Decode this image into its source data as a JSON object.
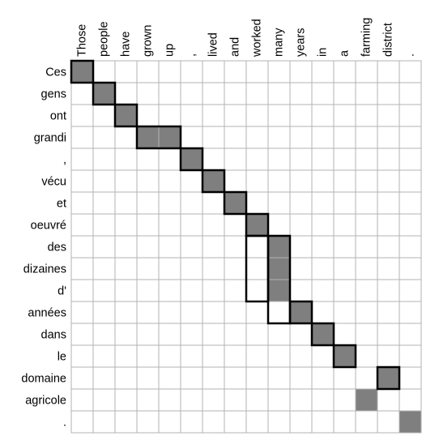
{
  "alignment": {
    "source_words": [
      "Those",
      "people",
      "have",
      "grown",
      "up",
      ",",
      "lived",
      "and",
      "worked",
      "many",
      "years",
      "in",
      "a",
      "farming",
      "district",
      "."
    ],
    "target_words": [
      "Ces",
      "gens",
      "ont",
      "grandi",
      ",",
      "vécu",
      "et",
      "oeuvré",
      "des",
      "dizaines",
      "d'",
      "années",
      "dans",
      "le",
      "domaine",
      "agricole",
      "."
    ],
    "alignments": [
      [
        0,
        0
      ],
      [
        1,
        1
      ],
      [
        2,
        2
      ],
      [
        3,
        3
      ],
      [
        3,
        4
      ],
      [
        4,
        5
      ],
      [
        5,
        6
      ],
      [
        6,
        7
      ],
      [
        7,
        8
      ],
      [
        8,
        9
      ],
      [
        9,
        9
      ],
      [
        10,
        9
      ],
      [
        11,
        10
      ],
      [
        12,
        11
      ],
      [
        13,
        12
      ],
      [
        14,
        14
      ],
      [
        15,
        13
      ],
      [
        16,
        15
      ]
    ],
    "boxes": [
      {
        "rows": [
          0,
          1
        ],
        "cols": [
          0,
          1
        ]
      },
      {
        "rows": [
          1,
          2
        ],
        "cols": [
          1,
          2
        ]
      },
      {
        "rows": [
          2,
          3
        ],
        "cols": [
          2,
          3
        ]
      },
      {
        "rows": [
          3,
          4
        ],
        "cols": [
          3,
          5
        ]
      },
      {
        "rows": [
          4,
          5
        ],
        "cols": [
          5,
          6
        ]
      },
      {
        "rows": [
          5,
          6
        ],
        "cols": [
          6,
          7
        ]
      },
      {
        "rows": [
          6,
          7
        ],
        "cols": [
          7,
          8
        ]
      },
      {
        "rows": [
          7,
          8
        ],
        "cols": [
          8,
          9
        ]
      },
      {
        "rows": [
          8,
          11
        ],
        "cols": [
          8,
          9
        ]
      },
      {
        "rows": [
          8,
          12
        ],
        "cols": [
          9,
          10
        ]
      },
      {
        "rows": [
          11,
          12
        ],
        "cols": [
          10,
          11
        ]
      },
      {
        "rows": [
          12,
          13
        ],
        "cols": [
          11,
          12
        ]
      },
      {
        "rows": [
          13,
          14
        ],
        "cols": [
          12,
          13
        ]
      },
      {
        "rows": [
          14,
          15
        ],
        "cols": [
          14,
          15
        ]
      }
    ]
  },
  "colors": {
    "filled": "#7f7f7f",
    "grid": "#b3b3b3",
    "box": "#000000"
  }
}
